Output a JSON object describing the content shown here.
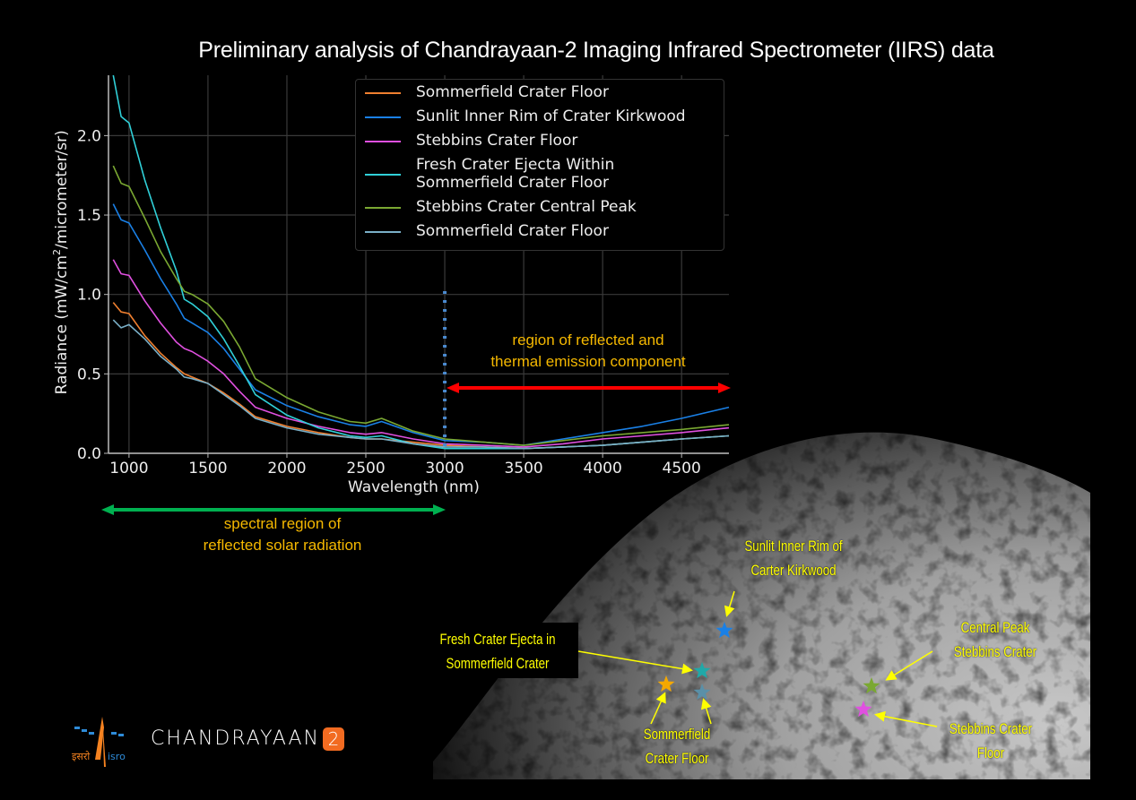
{
  "title": "Preliminary analysis of Chandrayaan-2 Imaging Infrared Spectrometer (IIRS) data",
  "chart_data": {
    "type": "line",
    "title": "Preliminary analysis of Chandrayaan-2 Imaging Infrared Spectrometer (IIRS) data",
    "xlabel": "Wavelength (nm)",
    "ylabel": "Radiance (mW/cm2/micrometer/sr)",
    "xlim": [
      870,
      4800
    ],
    "ylim": [
      0.0,
      2.38
    ],
    "xticks": [
      1000,
      1500,
      2000,
      2500,
      3000,
      3500,
      4000,
      4500
    ],
    "yticks": [
      0.0,
      0.5,
      1.0,
      1.5,
      2.0
    ],
    "grid": true,
    "legend_position": "upper center",
    "x": [
      900,
      950,
      1000,
      1100,
      1200,
      1300,
      1350,
      1400,
      1500,
      1600,
      1700,
      1800,
      2000,
      2200,
      2400,
      2500,
      2600,
      2800,
      3000,
      3250,
      3500,
      3750,
      4000,
      4250,
      4500,
      4800
    ],
    "series": [
      {
        "name": "Sommerfield Crater Floor",
        "color": "#f08030",
        "values": [
          0.95,
          0.89,
          0.88,
          0.74,
          0.63,
          0.54,
          0.5,
          0.48,
          0.44,
          0.38,
          0.31,
          0.23,
          0.17,
          0.13,
          0.1,
          0.09,
          0.09,
          0.07,
          0.05,
          0.04,
          0.03,
          0.04,
          0.05,
          0.07,
          0.09,
          0.11
        ]
      },
      {
        "name": "Sunlit Inner Rim of Crater Kirkwood",
        "color": "#1a80e6",
        "values": [
          1.57,
          1.47,
          1.45,
          1.28,
          1.1,
          0.94,
          0.85,
          0.82,
          0.76,
          0.66,
          0.53,
          0.4,
          0.3,
          0.23,
          0.18,
          0.17,
          0.2,
          0.13,
          0.08,
          0.07,
          0.05,
          0.09,
          0.13,
          0.17,
          0.22,
          0.29
        ]
      },
      {
        "name": "Stebbins Crater Floor",
        "color": "#e050e0",
        "values": [
          1.22,
          1.13,
          1.12,
          0.96,
          0.82,
          0.7,
          0.66,
          0.64,
          0.58,
          0.5,
          0.39,
          0.29,
          0.22,
          0.17,
          0.13,
          0.12,
          0.13,
          0.09,
          0.06,
          0.05,
          0.04,
          0.06,
          0.09,
          0.11,
          0.13,
          0.16
        ]
      },
      {
        "name": "Fresh Crater Ejecta Within Sommerfield Crater Floor",
        "color": "#30d0d8",
        "values": [
          2.38,
          2.12,
          2.08,
          1.72,
          1.42,
          1.15,
          0.97,
          0.94,
          0.86,
          0.72,
          0.55,
          0.37,
          0.24,
          0.16,
          0.11,
          0.1,
          0.11,
          0.06,
          0.03,
          0.03,
          0.03,
          0.04,
          0.05,
          0.07,
          0.09,
          0.11
        ]
      },
      {
        "name": "Stebbins Crater Central Peak",
        "color": "#7aa832",
        "values": [
          1.81,
          1.7,
          1.68,
          1.48,
          1.27,
          1.1,
          1.02,
          1.0,
          0.94,
          0.83,
          0.67,
          0.47,
          0.35,
          0.26,
          0.2,
          0.19,
          0.22,
          0.14,
          0.09,
          0.07,
          0.05,
          0.08,
          0.11,
          0.13,
          0.15,
          0.18
        ]
      },
      {
        "name": "Sommerfield Crater Floor",
        "color": "#7ab0c8",
        "values": [
          0.84,
          0.79,
          0.81,
          0.72,
          0.61,
          0.53,
          0.48,
          0.47,
          0.44,
          0.37,
          0.3,
          0.22,
          0.16,
          0.12,
          0.1,
          0.09,
          0.09,
          0.06,
          0.04,
          0.04,
          0.03,
          0.04,
          0.05,
          0.07,
          0.09,
          0.11
        ]
      }
    ],
    "annotations": [
      {
        "text": "region of reflected and thermal emission component",
        "x_range": [
          3000,
          4800
        ],
        "arrow_color": "#ff0000"
      },
      {
        "text": "spectral region of reflected solar radiation",
        "x_range": [
          870,
          3000
        ],
        "arrow_color": "#00b050"
      },
      {
        "type": "vline",
        "x": 3000,
        "style": "dotted",
        "color": "#4a8ad0"
      }
    ]
  },
  "chart": {
    "xlabel": "Wavelength (nm)",
    "ylabel_prefix": "Radiance (mW/cm",
    "ylabel_sup": "2",
    "ylabel_suffix": "/micrometer/sr)",
    "xtick_labels": [
      "1000",
      "1500",
      "2000",
      "2500",
      "3000",
      "3500",
      "4000",
      "4500"
    ],
    "ytick_labels": [
      "0.0",
      "0.5",
      "1.0",
      "1.5",
      "2.0"
    ]
  },
  "legend": [
    {
      "label": "Sommerfield Crater Floor",
      "color": "#f08030"
    },
    {
      "label": "Sunlit Inner Rim of Crater Kirkwood",
      "color": "#1a80e6"
    },
    {
      "label": "Stebbins Crater Floor",
      "color": "#e050e0"
    },
    {
      "label": "Fresh Crater Ejecta Within",
      "label2": "Sommerfield Crater Floor",
      "color": "#30d0d8"
    },
    {
      "label": "Stebbins Crater Central Peak",
      "color": "#7aa832"
    },
    {
      "label": "Sommerfield Crater Floor",
      "color": "#7ab0c8"
    }
  ],
  "annotations": {
    "thermal_line1": "region of reflected and",
    "thermal_line2": "thermal emission component",
    "solar_line1": "spectral region of",
    "solar_line2": "reflected solar radiation"
  },
  "moon_labels": {
    "kirkwood_1": "Sunlit Inner Rim of",
    "kirkwood_2": "Carter Kirkwood",
    "ejecta_1": "Fresh Crater Ejecta in",
    "ejecta_2": "Sommerfield Crater",
    "sommerfield_1": "Sommerfield",
    "sommerfield_2": "Crater Floor",
    "peak_1": "Central Peak",
    "peak_2": "Stebbins Crater",
    "stebbins_1": "Stebbins Crater",
    "stebbins_2": "Floor"
  },
  "logos": {
    "mission_name": "CHANDRAYAAN",
    "mission_number": "2",
    "agency_hindi": "इसरो",
    "agency_latin": "isro"
  }
}
